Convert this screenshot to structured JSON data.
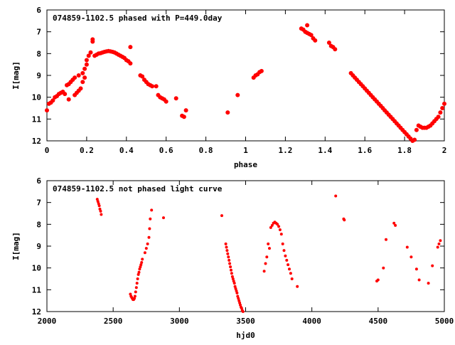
{
  "chart_data": [
    {
      "type": "scatter",
      "title": "074859-1102.5 phased with P=449.0day",
      "xlabel": "phase",
      "ylabel": "I[mag]",
      "xlim": [
        0,
        2
      ],
      "ylim": [
        6,
        12
      ],
      "y_inverted": true,
      "grid": false,
      "x_ticks": [
        "0",
        "0.2",
        "0.4",
        "0.6",
        "0.8",
        "1",
        "1.2",
        "1.4",
        "1.6",
        "1.8",
        "2"
      ],
      "x_tick_values": [
        0,
        0.2,
        0.4,
        0.6,
        0.8,
        1.0,
        1.2,
        1.4,
        1.6,
        1.8,
        2.0
      ],
      "y_ticks": [
        "6",
        "7",
        "8",
        "9",
        "10",
        "11",
        "12"
      ],
      "y_tick_values": [
        6,
        7,
        8,
        9,
        10,
        11,
        12
      ],
      "color": "#ff0000",
      "series": [
        {
          "points": [
            [
              0.0,
              10.6
            ],
            [
              0.01,
              10.3
            ],
            [
              0.02,
              10.25
            ],
            [
              0.03,
              10.15
            ],
            [
              0.04,
              10.0
            ],
            [
              0.05,
              9.95
            ],
            [
              0.06,
              9.85
            ],
            [
              0.07,
              9.8
            ],
            [
              0.08,
              9.75
            ],
            [
              0.09,
              9.85
            ],
            [
              0.1,
              9.45
            ],
            [
              0.11,
              9.4
            ],
            [
              0.11,
              10.1
            ],
            [
              0.12,
              9.3
            ],
            [
              0.13,
              9.2
            ],
            [
              0.14,
              9.1
            ],
            [
              0.14,
              9.9
            ],
            [
              0.15,
              9.8
            ],
            [
              0.16,
              9.0
            ],
            [
              0.16,
              9.7
            ],
            [
              0.17,
              9.6
            ],
            [
              0.18,
              8.9
            ],
            [
              0.18,
              9.3
            ],
            [
              0.19,
              8.7
            ],
            [
              0.19,
              9.1
            ],
            [
              0.2,
              8.5
            ],
            [
              0.2,
              8.3
            ],
            [
              0.21,
              8.1
            ],
            [
              0.22,
              7.95
            ],
            [
              0.23,
              7.45
            ],
            [
              0.23,
              7.35
            ],
            [
              0.24,
              8.1
            ],
            [
              0.25,
              8.05
            ],
            [
              0.26,
              8.0
            ],
            [
              0.27,
              7.98
            ],
            [
              0.28,
              7.95
            ],
            [
              0.29,
              7.92
            ],
            [
              0.3,
              7.9
            ],
            [
              0.31,
              7.88
            ],
            [
              0.32,
              7.9
            ],
            [
              0.33,
              7.92
            ],
            [
              0.34,
              7.95
            ],
            [
              0.35,
              8.0
            ],
            [
              0.36,
              8.05
            ],
            [
              0.37,
              8.1
            ],
            [
              0.38,
              8.15
            ],
            [
              0.39,
              8.2
            ],
            [
              0.4,
              8.3
            ],
            [
              0.41,
              8.35
            ],
            [
              0.42,
              8.45
            ],
            [
              0.42,
              7.7
            ],
            [
              0.47,
              9.0
            ],
            [
              0.48,
              9.05
            ],
            [
              0.49,
              9.2
            ],
            [
              0.5,
              9.3
            ],
            [
              0.51,
              9.4
            ],
            [
              0.52,
              9.45
            ],
            [
              0.53,
              9.5
            ],
            [
              0.55,
              9.5
            ],
            [
              0.56,
              9.9
            ],
            [
              0.57,
              10.0
            ],
            [
              0.58,
              10.05
            ],
            [
              0.59,
              10.1
            ],
            [
              0.6,
              10.2
            ],
            [
              0.65,
              10.05
            ],
            [
              0.68,
              10.85
            ],
            [
              0.69,
              10.9
            ],
            [
              0.7,
              10.6
            ],
            [
              0.91,
              10.7
            ],
            [
              0.96,
              9.9
            ],
            [
              1.04,
              9.1
            ],
            [
              1.05,
              9.0
            ],
            [
              1.06,
              8.95
            ],
            [
              1.07,
              8.85
            ],
            [
              1.08,
              8.8
            ],
            [
              1.28,
              6.85
            ],
            [
              1.29,
              6.9
            ],
            [
              1.3,
              7.0
            ],
            [
              1.31,
              7.05
            ],
            [
              1.32,
              7.1
            ],
            [
              1.33,
              7.15
            ],
            [
              1.34,
              7.3
            ],
            [
              1.35,
              7.4
            ],
            [
              1.31,
              6.7
            ],
            [
              1.42,
              7.5
            ],
            [
              1.43,
              7.65
            ],
            [
              1.44,
              7.7
            ],
            [
              1.45,
              7.8
            ],
            [
              1.53,
              8.9
            ],
            [
              1.54,
              9.0
            ],
            [
              1.55,
              9.1
            ],
            [
              1.56,
              9.2
            ],
            [
              1.57,
              9.3
            ],
            [
              1.58,
              9.4
            ],
            [
              1.59,
              9.5
            ],
            [
              1.6,
              9.6
            ],
            [
              1.61,
              9.7
            ],
            [
              1.62,
              9.8
            ],
            [
              1.63,
              9.9
            ],
            [
              1.64,
              10.0
            ],
            [
              1.65,
              10.1
            ],
            [
              1.66,
              10.2
            ],
            [
              1.67,
              10.3
            ],
            [
              1.68,
              10.4
            ],
            [
              1.69,
              10.5
            ],
            [
              1.7,
              10.6
            ],
            [
              1.71,
              10.7
            ],
            [
              1.72,
              10.8
            ],
            [
              1.73,
              10.9
            ],
            [
              1.74,
              11.0
            ],
            [
              1.75,
              11.1
            ],
            [
              1.76,
              11.2
            ],
            [
              1.77,
              11.3
            ],
            [
              1.78,
              11.4
            ],
            [
              1.79,
              11.5
            ],
            [
              1.8,
              11.6
            ],
            [
              1.81,
              11.7
            ],
            [
              1.82,
              11.8
            ],
            [
              1.83,
              11.9
            ],
            [
              1.84,
              12.0
            ],
            [
              1.85,
              11.95
            ],
            [
              1.86,
              11.5
            ],
            [
              1.87,
              11.3
            ],
            [
              1.88,
              11.35
            ],
            [
              1.89,
              11.4
            ],
            [
              1.9,
              11.4
            ],
            [
              1.91,
              11.4
            ],
            [
              1.92,
              11.35
            ],
            [
              1.93,
              11.3
            ],
            [
              1.94,
              11.2
            ],
            [
              1.95,
              11.1
            ],
            [
              1.96,
              11.0
            ],
            [
              1.97,
              10.9
            ],
            [
              1.98,
              10.7
            ],
            [
              1.99,
              10.5
            ],
            [
              2.0,
              10.3
            ]
          ]
        }
      ]
    },
    {
      "type": "scatter",
      "title": "074859-1102.5 not phased light curve",
      "xlabel": "hjd0",
      "ylabel": "I[mag]",
      "xlim": [
        2000,
        5000
      ],
      "ylim": [
        6,
        12
      ],
      "y_inverted": true,
      "grid": false,
      "x_ticks": [
        "2000",
        "2500",
        "3000",
        "3500",
        "4000",
        "4500",
        "5000"
      ],
      "x_tick_values": [
        2000,
        2500,
        3000,
        3500,
        4000,
        4500,
        5000
      ],
      "y_ticks": [
        "6",
        "7",
        "8",
        "9",
        "10",
        "11",
        "12"
      ],
      "y_tick_values": [
        6,
        7,
        8,
        9,
        10,
        11,
        12
      ],
      "color": "#ff0000",
      "series": [
        {
          "points": [
            [
              2380,
              6.85
            ],
            [
              2385,
              6.95
            ],
            [
              2390,
              7.05
            ],
            [
              2395,
              7.15
            ],
            [
              2400,
              7.3
            ],
            [
              2405,
              7.4
            ],
            [
              2410,
              7.55
            ],
            [
              2630,
              11.2
            ],
            [
              2635,
              11.3
            ],
            [
              2640,
              11.35
            ],
            [
              2645,
              11.4
            ],
            [
              2650,
              11.45
            ],
            [
              2655,
              11.45
            ],
            [
              2660,
              11.4
            ],
            [
              2665,
              11.3
            ],
            [
              2670,
              11.1
            ],
            [
              2675,
              10.9
            ],
            [
              2680,
              10.7
            ],
            [
              2685,
              10.5
            ],
            [
              2690,
              10.3
            ],
            [
              2695,
              10.2
            ],
            [
              2700,
              10.05
            ],
            [
              2705,
              9.95
            ],
            [
              2710,
              9.85
            ],
            [
              2715,
              9.75
            ],
            [
              2720,
              9.6
            ],
            [
              2740,
              9.3
            ],
            [
              2750,
              9.1
            ],
            [
              2760,
              8.9
            ],
            [
              2770,
              8.6
            ],
            [
              2775,
              8.2
            ],
            [
              2780,
              7.75
            ],
            [
              2790,
              7.35
            ],
            [
              2880,
              7.7
            ],
            [
              3320,
              7.6
            ],
            [
              3350,
              8.9
            ],
            [
              3355,
              9.05
            ],
            [
              3360,
              9.2
            ],
            [
              3365,
              9.35
            ],
            [
              3370,
              9.5
            ],
            [
              3375,
              9.65
            ],
            [
              3380,
              9.8
            ],
            [
              3385,
              9.95
            ],
            [
              3390,
              10.1
            ],
            [
              3395,
              10.25
            ],
            [
              3400,
              10.4
            ],
            [
              3405,
              10.5
            ],
            [
              3410,
              10.6
            ],
            [
              3415,
              10.7
            ],
            [
              3420,
              10.85
            ],
            [
              3425,
              10.95
            ],
            [
              3430,
              11.05
            ],
            [
              3435,
              11.15
            ],
            [
              3440,
              11.3
            ],
            [
              3445,
              11.4
            ],
            [
              3450,
              11.5
            ],
            [
              3455,
              11.6
            ],
            [
              3460,
              11.7
            ],
            [
              3465,
              11.8
            ],
            [
              3470,
              11.85
            ],
            [
              3475,
              11.95
            ],
            [
              3480,
              12.0
            ],
            [
              3640,
              10.15
            ],
            [
              3650,
              9.8
            ],
            [
              3660,
              9.5
            ],
            [
              3670,
              8.9
            ],
            [
              3680,
              9.1
            ],
            [
              3690,
              8.15
            ],
            [
              3700,
              8.05
            ],
            [
              3710,
              7.95
            ],
            [
              3720,
              7.9
            ],
            [
              3730,
              7.95
            ],
            [
              3740,
              8.0
            ],
            [
              3750,
              8.1
            ],
            [
              3760,
              8.25
            ],
            [
              3770,
              8.45
            ],
            [
              3780,
              8.9
            ],
            [
              3790,
              9.2
            ],
            [
              3800,
              9.45
            ],
            [
              3810,
              9.65
            ],
            [
              3820,
              9.85
            ],
            [
              3830,
              10.05
            ],
            [
              3840,
              10.25
            ],
            [
              3850,
              10.5
            ],
            [
              3890,
              10.85
            ],
            [
              4180,
              6.7
            ],
            [
              4240,
              7.75
            ],
            [
              4245,
              7.8
            ],
            [
              4490,
              10.6
            ],
            [
              4500,
              10.55
            ],
            [
              4540,
              10.0
            ],
            [
              4560,
              8.7
            ],
            [
              4620,
              7.95
            ],
            [
              4630,
              8.05
            ],
            [
              4720,
              9.05
            ],
            [
              4750,
              9.5
            ],
            [
              4790,
              10.05
            ],
            [
              4810,
              10.55
            ],
            [
              4880,
              10.7
            ],
            [
              4910,
              9.9
            ],
            [
              4950,
              9.05
            ],
            [
              4960,
              8.9
            ],
            [
              4970,
              8.75
            ]
          ]
        }
      ]
    }
  ]
}
